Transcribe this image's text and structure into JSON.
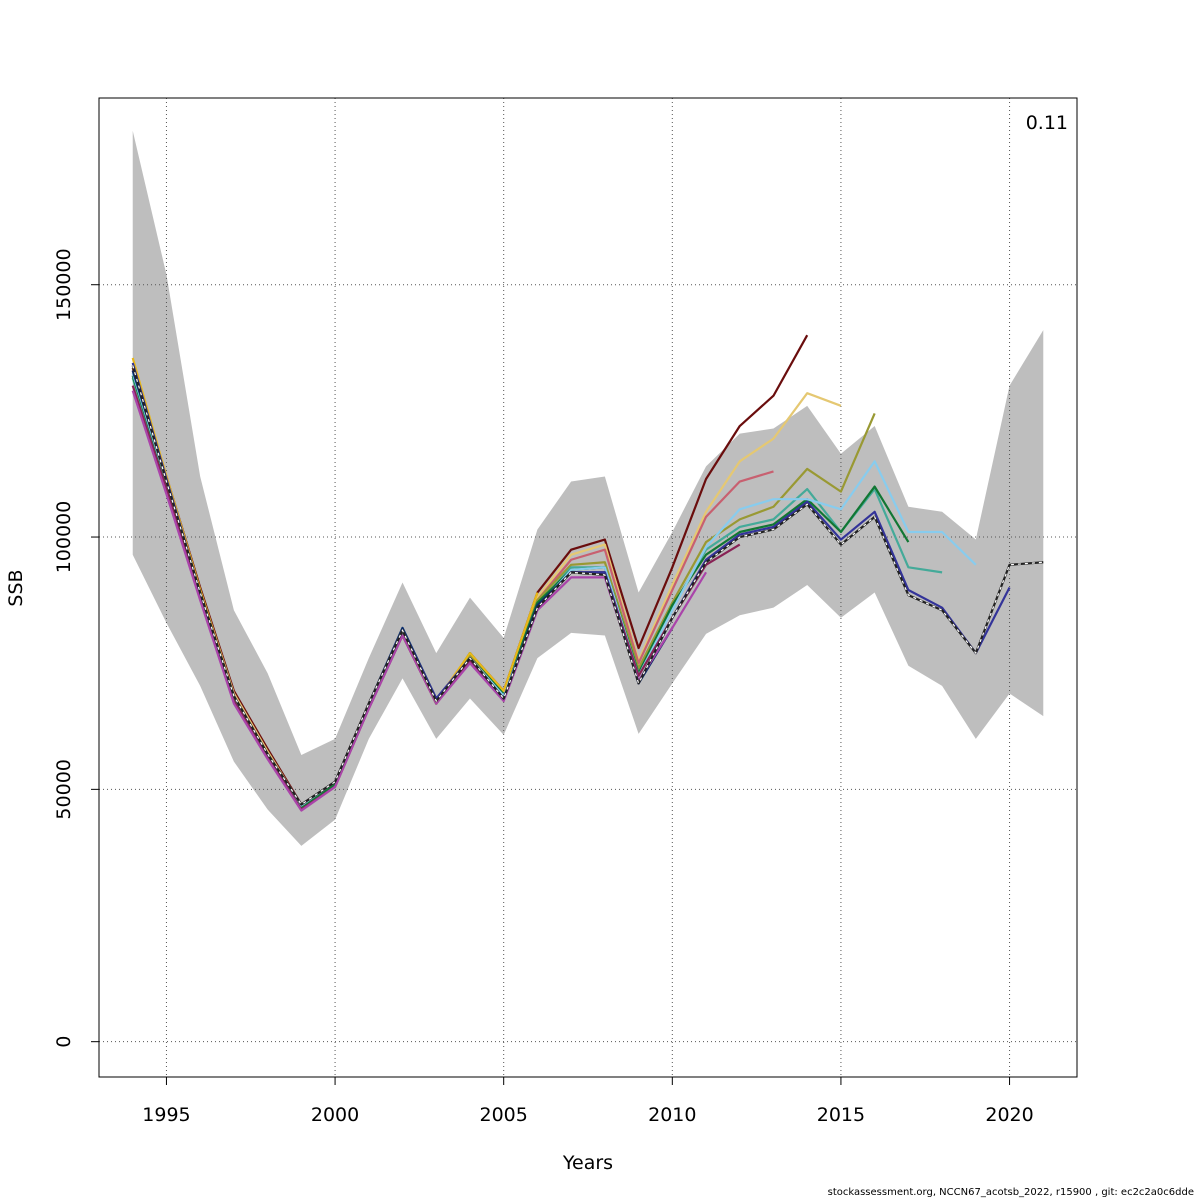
{
  "chart_data": {
    "type": "line",
    "title": "",
    "xlabel": "Years",
    "ylabel": "SSB",
    "annotation": "0.11",
    "xlim": [
      1993,
      2022
    ],
    "ylim": [
      -7000,
      187000
    ],
    "xticks": [
      1995,
      2000,
      2005,
      2010,
      2015,
      2020
    ],
    "yticks": [
      0,
      50000,
      100000,
      150000
    ],
    "ytick_labels": [
      "0",
      "50000",
      "100000",
      "150000"
    ],
    "grid": true,
    "band": {
      "years": [
        1994,
        1995,
        1996,
        1997,
        1998,
        1999,
        2000,
        2001,
        2002,
        2003,
        2004,
        2005,
        2006,
        2007,
        2008,
        2009,
        2010,
        2011,
        2012,
        2013,
        2014,
        2015,
        2016,
        2017,
        2018,
        2019,
        2020,
        2021
      ],
      "upper": [
        180500,
        152000,
        112000,
        85500,
        73000,
        56800,
        60000,
        76000,
        91000,
        77000,
        88000,
        80000,
        101500,
        111000,
        112000,
        89000,
        101000,
        114000,
        120500,
        121500,
        126000,
        116500,
        122000,
        106000,
        105000,
        99500,
        130000,
        141000
      ],
      "lower": [
        96500,
        83000,
        70500,
        55500,
        46000,
        38800,
        44000,
        60000,
        72000,
        60000,
        68000,
        60800,
        76000,
        81000,
        80500,
        61000,
        71000,
        80800,
        84500,
        86000,
        90500,
        84000,
        89000,
        74500,
        70500,
        60000,
        69000,
        64500
      ]
    },
    "series": [
      {
        "color": "#6a0d0d",
        "dashed": false,
        "start": 1994,
        "values": [
          133500,
          112000,
          90000,
          69500,
          58000,
          47000,
          51500,
          67000,
          81000,
          67000,
          77000,
          69500,
          89000,
          97500,
          99500,
          78000,
          94000,
          111500,
          122000,
          128000,
          140000
        ]
      },
      {
        "color": "#e5c872",
        "dashed": false,
        "start": 1994,
        "values": [
          134000,
          112000,
          89500,
          69000,
          57500,
          46800,
          51500,
          67000,
          81000,
          67000,
          77000,
          69000,
          88000,
          96500,
          98500,
          75500,
          90500,
          105000,
          115000,
          119500,
          128500,
          126000
        ]
      },
      {
        "color": "#c86070",
        "dashed": false,
        "start": 1994,
        "values": [
          133000,
          111000,
          89000,
          68500,
          57000,
          46500,
          51000,
          66500,
          80500,
          67000,
          76000,
          68500,
          87500,
          95500,
          97500,
          75000,
          89500,
          104000,
          111000,
          113000
        ]
      },
      {
        "color": "#999933",
        "dashed": false,
        "start": 1994,
        "values": [
          132000,
          111000,
          88500,
          68000,
          57000,
          46500,
          51000,
          66500,
          80500,
          67000,
          76500,
          69000,
          87500,
          94500,
          95000,
          74000,
          87000,
          99000,
          103500,
          106000,
          113500,
          109000,
          124500
        ]
      },
      {
        "color": "#44aa99",
        "dashed": false,
        "start": 1994,
        "values": [
          131500,
          110500,
          88500,
          68000,
          57000,
          46500,
          51000,
          66500,
          81000,
          67500,
          76000,
          68500,
          86500,
          94000,
          94000,
          73000,
          86000,
          97500,
          102000,
          103500,
          109500,
          101000,
          109500,
          94000,
          93000
        ]
      },
      {
        "color": "#117733",
        "dashed": false,
        "start": 1994,
        "values": [
          132000,
          110500,
          88500,
          68000,
          57000,
          46500,
          51000,
          66500,
          81000,
          67000,
          77000,
          69000,
          87000,
          93500,
          94000,
          73000,
          86500,
          96500,
          101000,
          102500,
          107500,
          101000,
          110000,
          99000
        ]
      },
      {
        "color": "#88ccee",
        "dashed": false,
        "start": 1994,
        "values": [
          132500,
          111000,
          89000,
          68500,
          57000,
          46800,
          51500,
          66800,
          81500,
          67500,
          76000,
          68500,
          86000,
          93500,
          94000,
          72500,
          85500,
          98000,
          105500,
          107500,
          107500,
          105500,
          115000,
          101000,
          101000,
          94500
        ]
      },
      {
        "color": "#882255",
        "dashed": false,
        "start": 1994,
        "values": [
          130000,
          109500,
          88000,
          67500,
          56500,
          46000,
          50500,
          66000,
          80500,
          67000,
          75500,
          68000,
          86000,
          93000,
          93000,
          72500,
          84000,
          94500,
          98500
        ]
      },
      {
        "color": "#0a2d6a",
        "dashed": false,
        "start": 1994,
        "values": [
          133000,
          111500,
          89000,
          68500,
          57000,
          47000,
          51500,
          67000,
          82000,
          68000,
          76000,
          68000,
          86500,
          93000,
          93000,
          71000,
          82000
        ]
      },
      {
        "color": "#aa44aa",
        "dashed": false,
        "start": 1994,
        "values": [
          129000,
          108500,
          87500,
          67000,
          56000,
          45800,
          50500,
          66000,
          80500,
          67000,
          75000,
          67500,
          85500,
          92000,
          92000,
          71500,
          82000,
          93000
        ]
      },
      {
        "color": "#e8b818",
        "dashed": false,
        "start": 1994,
        "values": [
          135500,
          112000,
          89500,
          68500,
          57000,
          47000,
          51500,
          67000,
          81500,
          67500,
          77000,
          69500,
          89000
        ]
      },
      {
        "color": "#333399",
        "dashed": false,
        "start": 1994,
        "values": [
          134500,
          111500,
          89000,
          68500,
          57000,
          47000,
          51500,
          67000,
          81500,
          68000,
          76000,
          68000,
          86000,
          93000,
          93000,
          71000,
          84000,
          95500,
          100500,
          102000,
          107000,
          99500,
          105000,
          89500,
          86000,
          77000,
          90000
        ]
      },
      {
        "color": "#222222",
        "dashed": true,
        "start": 1994,
        "values": [
          134000,
          111000,
          89000,
          68500,
          57000,
          47000,
          51500,
          67000,
          81500,
          67500,
          76000,
          68000,
          86000,
          93000,
          92500,
          71000,
          84000,
          95000,
          100000,
          101500,
          106500,
          98500,
          104000,
          88500,
          85500,
          77000,
          94500,
          95000
        ]
      }
    ]
  },
  "footer": "stockassessment.org, NCCN67_acotsb_2022, r15900 , git: ec2c2a0c6dde"
}
